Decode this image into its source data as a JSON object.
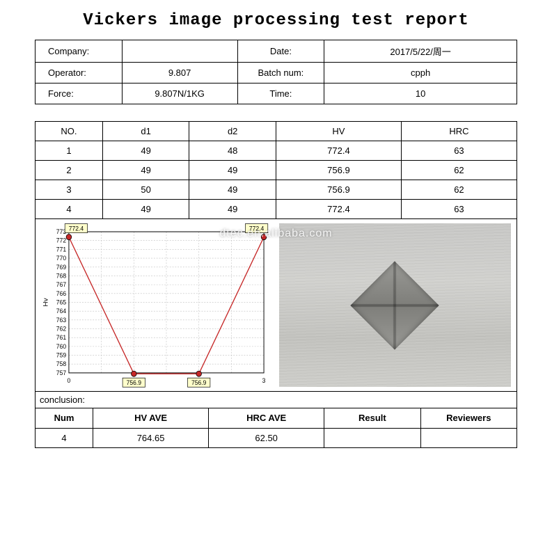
{
  "title": "Vickers image processing test report",
  "info": {
    "company_label": "Company:",
    "company_value": "",
    "date_label": "Date:",
    "date_value": "2017/5/22/周一",
    "operator_label": "Operator:",
    "operator_value": "9.807",
    "batch_label": "Batch num:",
    "batch_value": "cpph",
    "force_label": "Force:",
    "force_value": "9.807N/1KG",
    "time_label": "Time:",
    "time_value": "10"
  },
  "data_headers": [
    "NO.",
    "d1",
    "d2",
    "HV",
    "HRC"
  ],
  "data_rows": [
    [
      "1",
      "49",
      "48",
      "772.4",
      "63"
    ],
    [
      "2",
      "49",
      "49",
      "756.9",
      "62"
    ],
    [
      "3",
      "50",
      "49",
      "756.9",
      "62"
    ],
    [
      "4",
      "49",
      "49",
      "772.4",
      "63"
    ]
  ],
  "chart": {
    "type": "line",
    "ylabel": "Hv",
    "x_values": [
      0,
      1,
      2,
      3
    ],
    "y_values": [
      772.4,
      756.9,
      756.9,
      772.4
    ],
    "point_labels": [
      "772.4",
      "756.9",
      "756.9",
      "772.4"
    ],
    "xlim": [
      0,
      3
    ],
    "ylim": [
      757,
      773
    ],
    "ytick_step": 1,
    "xtick_step": 1,
    "line_color": "#c62828",
    "line_width": 1.4,
    "marker_style": "circle",
    "marker_size": 4,
    "marker_fill": "#c62828",
    "marker_stroke": "#000000",
    "grid_color": "#bdbdbd",
    "grid_dash": "2,2",
    "axis_color": "#000000",
    "background_color": "#ffffff",
    "label_box_fill": "#ffffcc",
    "label_box_stroke": "#000000",
    "label_fontsize": 9,
    "axis_fontsize": 9,
    "ylabel_fontsize": 10
  },
  "watermark": "dtec.en.alibaba.com",
  "conclusion_label": "conclusion:",
  "summary_headers": [
    "Num",
    "HV AVE",
    "HRC AVE",
    "Result",
    "Reviewers"
  ],
  "summary_row": [
    "4",
    "764.65",
    "62.50",
    "",
    ""
  ]
}
